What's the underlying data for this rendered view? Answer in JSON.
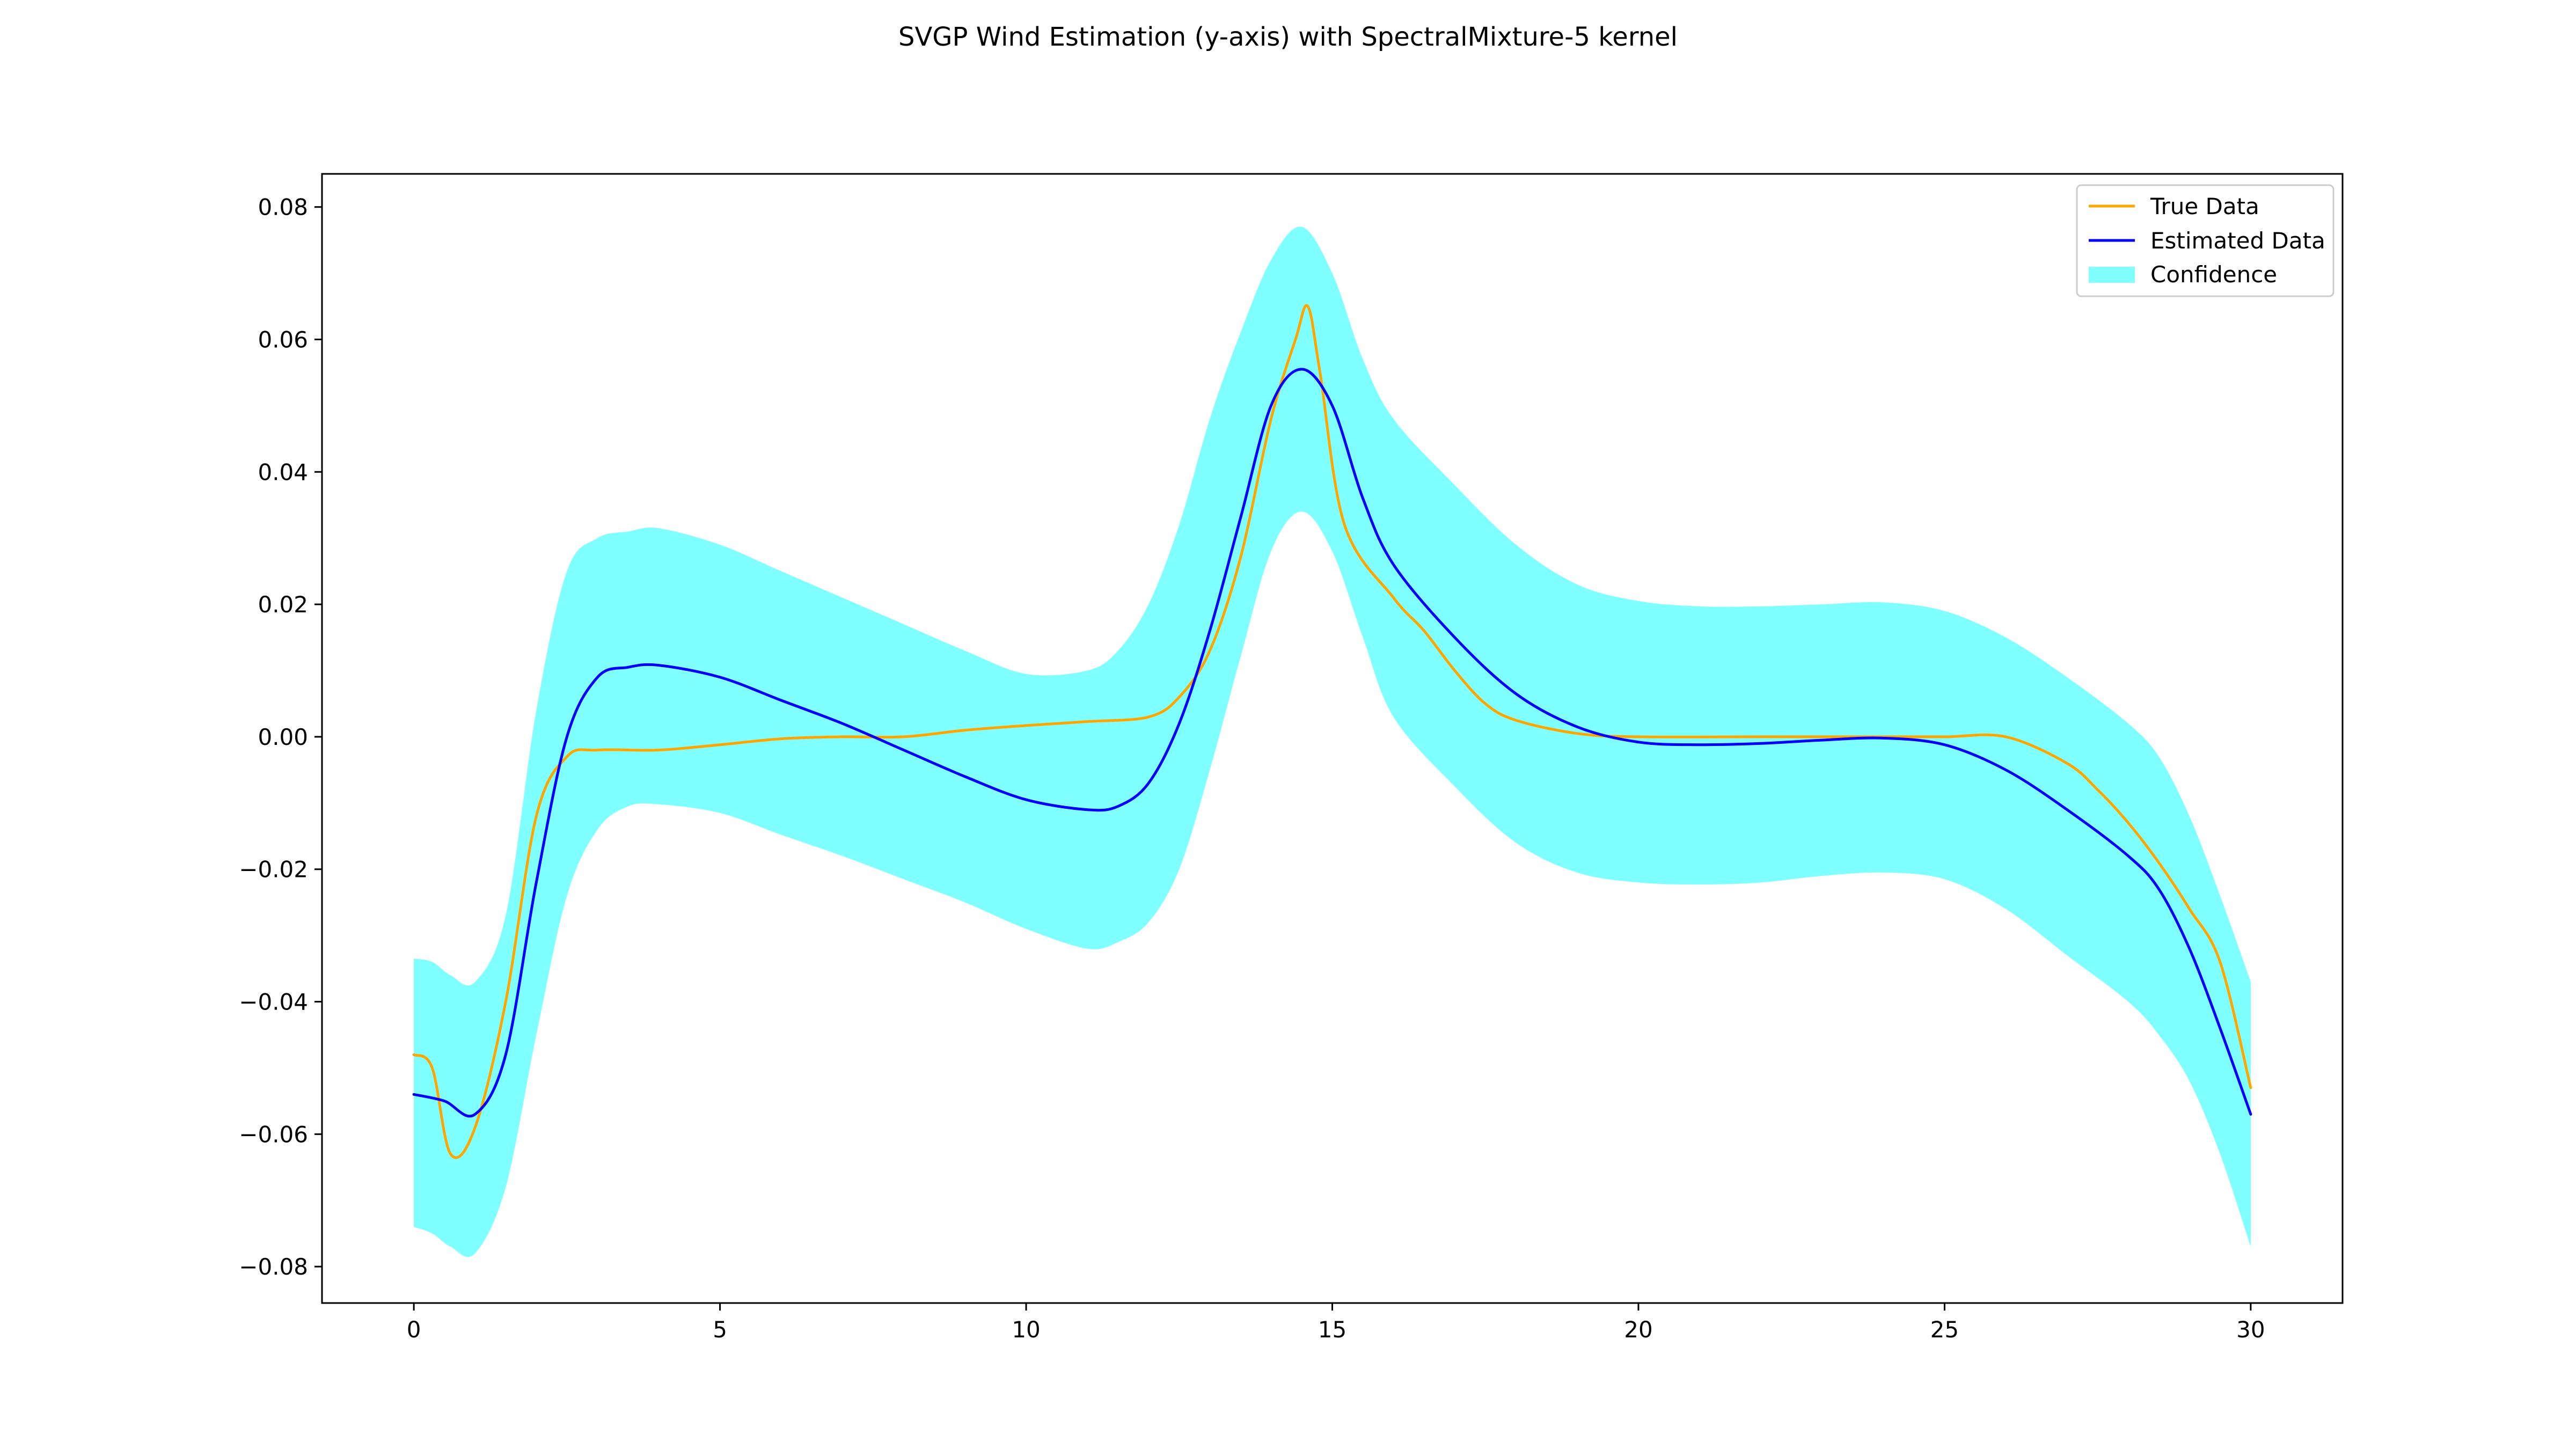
{
  "chart_data": {
    "type": "line",
    "title": "SVGP Wind Estimation (y-axis) with SpectralMixture-5 kernel",
    "xlabel": "",
    "ylabel": "",
    "xlim": [
      -1.5,
      31.5
    ],
    "ylim": [
      -0.0855,
      0.085
    ],
    "xticks": [
      0,
      5,
      10,
      15,
      20,
      25,
      30
    ],
    "xtick_labels": [
      "0",
      "5",
      "10",
      "15",
      "20",
      "25",
      "30"
    ],
    "yticks": [
      -0.08,
      -0.06,
      -0.04,
      -0.02,
      0.0,
      0.02,
      0.04,
      0.06,
      0.08
    ],
    "ytick_labels": [
      "−0.08",
      "−0.06",
      "−0.04",
      "−0.02",
      "0.00",
      "0.02",
      "0.04",
      "0.06",
      "0.08"
    ],
    "grid": false,
    "legend_position": "upper right",
    "legend": [
      "True Data",
      "Estimated Data",
      "Confidence"
    ],
    "colors": {
      "true_data": "#ffa500",
      "estimated_data": "#0000ff",
      "confidence": "#00ffff",
      "confidence_alpha": 0.5
    },
    "series": [
      {
        "name": "True Data",
        "x": [
          0,
          0.3,
          0.6,
          1.0,
          1.5,
          2.0,
          2.5,
          3.0,
          4.0,
          5.0,
          6.0,
          7.0,
          8.0,
          9.0,
          10.0,
          11.0,
          12.0,
          12.5,
          13.0,
          13.5,
          14.0,
          14.4,
          14.6,
          14.8,
          15.2,
          16.0,
          16.5,
          17.0,
          17.5,
          18.0,
          19.0,
          20.0,
          22.0,
          24.0,
          25.0,
          26.0,
          27.0,
          27.5,
          28.0,
          28.5,
          29.0,
          29.5,
          30.0
        ],
        "y": [
          -0.048,
          -0.05,
          -0.063,
          -0.059,
          -0.04,
          -0.012,
          -0.003,
          -0.002,
          -0.002,
          -0.0012,
          -0.0003,
          0.0,
          0.0,
          0.001,
          0.0017,
          0.0023,
          0.003,
          0.006,
          0.013,
          0.027,
          0.048,
          0.06,
          0.065,
          0.055,
          0.032,
          0.021,
          0.016,
          0.01,
          0.005,
          0.0025,
          0.0005,
          0.0,
          0.0,
          0.0,
          0.0,
          0.0,
          -0.004,
          -0.008,
          -0.013,
          -0.019,
          -0.026,
          -0.034,
          -0.053
        ]
      },
      {
        "name": "Estimated Data",
        "x": [
          0,
          0.5,
          1.0,
          1.5,
          2.0,
          2.5,
          3.0,
          3.5,
          4.0,
          5.0,
          6.0,
          7.0,
          8.0,
          9.0,
          10.0,
          11.0,
          11.5,
          12.0,
          12.5,
          13.0,
          13.5,
          14.0,
          14.5,
          15.0,
          15.5,
          16.0,
          17.0,
          18.0,
          19.0,
          20.0,
          21.0,
          22.0,
          23.0,
          24.0,
          25.0,
          26.0,
          27.0,
          28.0,
          28.5,
          29.0,
          29.5,
          30.0
        ],
        "y": [
          -0.054,
          -0.055,
          -0.057,
          -0.048,
          -0.022,
          0.0,
          0.009,
          0.0105,
          0.0108,
          0.009,
          0.0055,
          0.002,
          -0.002,
          -0.006,
          -0.0095,
          -0.011,
          -0.0105,
          -0.007,
          0.002,
          0.016,
          0.033,
          0.05,
          0.0555,
          0.05,
          0.036,
          0.026,
          0.015,
          0.0065,
          0.0015,
          -0.0008,
          -0.0012,
          -0.001,
          -0.0005,
          -0.0002,
          -0.0012,
          -0.005,
          -0.011,
          -0.018,
          -0.023,
          -0.032,
          -0.044,
          -0.057
        ]
      },
      {
        "name": "Confidence",
        "x": [
          0,
          0.3,
          0.6,
          1.0,
          1.5,
          2.0,
          2.5,
          3.0,
          3.5,
          4.0,
          5.0,
          6.0,
          7.0,
          8.0,
          9.0,
          10.0,
          11.0,
          11.5,
          12.0,
          12.5,
          13.0,
          13.5,
          14.0,
          14.5,
          15.0,
          15.5,
          16.0,
          17.0,
          18.0,
          19.0,
          20.0,
          21.0,
          22.0,
          23.0,
          24.0,
          25.0,
          26.0,
          27.0,
          28.0,
          28.5,
          29.0,
          29.5,
          30.0
        ],
        "upper": [
          -0.0335,
          -0.034,
          -0.036,
          -0.037,
          -0.027,
          0.004,
          0.025,
          0.03,
          0.031,
          0.0315,
          0.029,
          0.025,
          0.021,
          0.017,
          0.013,
          0.0095,
          0.01,
          0.013,
          0.02,
          0.032,
          0.048,
          0.061,
          0.072,
          0.077,
          0.07,
          0.057,
          0.048,
          0.038,
          0.029,
          0.023,
          0.0205,
          0.0197,
          0.0197,
          0.02,
          0.0203,
          0.019,
          0.015,
          0.009,
          0.002,
          -0.003,
          -0.012,
          -0.024,
          -0.037
        ],
        "lower": [
          -0.074,
          -0.075,
          -0.077,
          -0.078,
          -0.068,
          -0.045,
          -0.024,
          -0.014,
          -0.0105,
          -0.0102,
          -0.0115,
          -0.0148,
          -0.018,
          -0.0215,
          -0.025,
          -0.029,
          -0.032,
          -0.031,
          -0.028,
          -0.02,
          -0.005,
          0.012,
          0.028,
          0.034,
          0.028,
          0.015,
          0.003,
          -0.0075,
          -0.016,
          -0.0205,
          -0.022,
          -0.0223,
          -0.022,
          -0.021,
          -0.0205,
          -0.0215,
          -0.026,
          -0.033,
          -0.04,
          -0.045,
          -0.052,
          -0.063,
          -0.077
        ]
      }
    ]
  }
}
